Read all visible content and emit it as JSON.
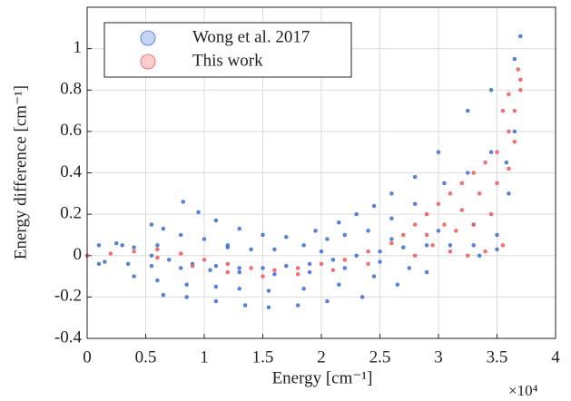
{
  "chart_data": {
    "type": "scatter",
    "x_label": "Energy [cm⁻¹]",
    "y_label": "Energy difference [cm⁻¹]",
    "x_multiplier": "×10⁴",
    "xlim": [
      0,
      40000
    ],
    "ylim": [
      -0.4,
      1.2
    ],
    "xticks": [
      0,
      {
        "value": 5000,
        "label": "0.5"
      },
      {
        "value": 10000,
        "label": "1"
      },
      {
        "value": 15000,
        "label": "1.5"
      },
      {
        "value": 20000,
        "label": "2"
      },
      {
        "value": 25000,
        "label": "2.5"
      },
      {
        "value": 30000,
        "label": "3"
      },
      {
        "value": 35000,
        "label": "3.5"
      },
      {
        "value": 40000,
        "label": "4"
      }
    ],
    "yticks": [
      -0.4,
      -0.2,
      0,
      0.2,
      0.4,
      0.6,
      0.8,
      1
    ],
    "grid": true,
    "legend_position": "upper-left",
    "series": [
      {
        "name": "Wong et al. 2017",
        "color": "#3f6fd9",
        "x": [
          3000,
          5500,
          8200,
          4000,
          6500,
          9500,
          5500,
          8000,
          11000,
          7000,
          10000,
          13000,
          9000,
          12000,
          15000,
          11000,
          14000,
          17000,
          13000,
          16000,
          19500,
          15000,
          18500,
          21500,
          17000,
          20500,
          23000,
          19000,
          22000,
          24500,
          21000,
          24000,
          26000,
          23000,
          26000,
          28000,
          25000,
          28000,
          30000,
          27000,
          30500,
          32500,
          29000,
          32500,
          34500,
          31000,
          34500,
          36500,
          33000,
          35800,
          37000,
          1500,
          4000,
          6500,
          3500,
          6000,
          8500,
          5500,
          8500,
          11000,
          8000,
          11000,
          13500,
          10500,
          13000,
          15500,
          13000,
          15500,
          18000,
          16000,
          18500,
          20500,
          19000,
          21500,
          23500,
          22000,
          24500,
          26500,
          25000,
          27500,
          29000,
          0,
          1000,
          1000,
          2500,
          6000,
          12000,
          20000,
          26000,
          30000,
          33000,
          35000,
          36000,
          36500,
          33500,
          35000
        ],
        "y": [
          0.05,
          0.15,
          0.26,
          0.04,
          0.13,
          0.21,
          0.0,
          0.1,
          0.17,
          -0.02,
          0.08,
          0.13,
          -0.04,
          0.05,
          0.1,
          -0.05,
          0.03,
          0.09,
          -0.06,
          0.03,
          0.12,
          -0.06,
          0.05,
          0.16,
          -0.05,
          0.08,
          0.2,
          -0.04,
          0.1,
          0.24,
          -0.02,
          0.12,
          0.3,
          0.0,
          0.18,
          0.38,
          0.02,
          0.25,
          0.5,
          0.04,
          0.35,
          0.7,
          0.05,
          0.4,
          0.8,
          0.05,
          0.5,
          0.95,
          0.05,
          0.45,
          1.06,
          -0.03,
          -0.1,
          -0.19,
          -0.04,
          -0.12,
          -0.2,
          -0.05,
          -0.14,
          -0.22,
          -0.06,
          -0.15,
          -0.24,
          -0.07,
          -0.16,
          -0.25,
          -0.08,
          -0.17,
          -0.24,
          -0.09,
          -0.16,
          -0.22,
          -0.08,
          -0.14,
          -0.2,
          -0.06,
          -0.1,
          -0.14,
          -0.03,
          -0.06,
          -0.08,
          0,
          0.05,
          -0.04,
          0.06,
          0.05,
          0.04,
          0.02,
          0.08,
          0.12,
          0.15,
          0.1,
          0.3,
          0.6,
          0.0,
          0.03
        ]
      },
      {
        "name": "This work",
        "color": "#f25a5a",
        "x": [
          0,
          2000,
          4000,
          6000,
          8000,
          10000,
          12000,
          14000,
          16000,
          18000,
          20000,
          22000,
          24000,
          26000,
          27000,
          28000,
          29000,
          30000,
          31000,
          32000,
          33000,
          34000,
          35000,
          36000,
          36500,
          37000,
          37000,
          36800,
          6000,
          9000,
          12000,
          15000,
          18000,
          21000,
          24000,
          28000,
          29500,
          31000,
          32500,
          34000,
          35500,
          30500,
          32000,
          33500,
          35000,
          36000,
          29000,
          31500,
          33000,
          34500,
          36500,
          35500,
          36000
        ],
        "y": [
          0,
          0.01,
          0.02,
          0.03,
          0.01,
          -0.02,
          -0.04,
          -0.06,
          -0.07,
          -0.06,
          -0.04,
          -0.02,
          0.02,
          0.06,
          0.1,
          0.15,
          0.2,
          0.25,
          0.3,
          0.35,
          0.4,
          0.45,
          0.5,
          0.6,
          0.7,
          0.85,
          0.8,
          0.9,
          -0.01,
          -0.05,
          -0.08,
          -0.1,
          -0.09,
          -0.07,
          -0.04,
          0.0,
          0.05,
          0.02,
          0.0,
          0.02,
          0.05,
          0.15,
          0.22,
          0.3,
          0.35,
          0.42,
          0.1,
          0.12,
          0.15,
          0.2,
          0.55,
          0.7,
          0.78
        ]
      }
    ]
  }
}
